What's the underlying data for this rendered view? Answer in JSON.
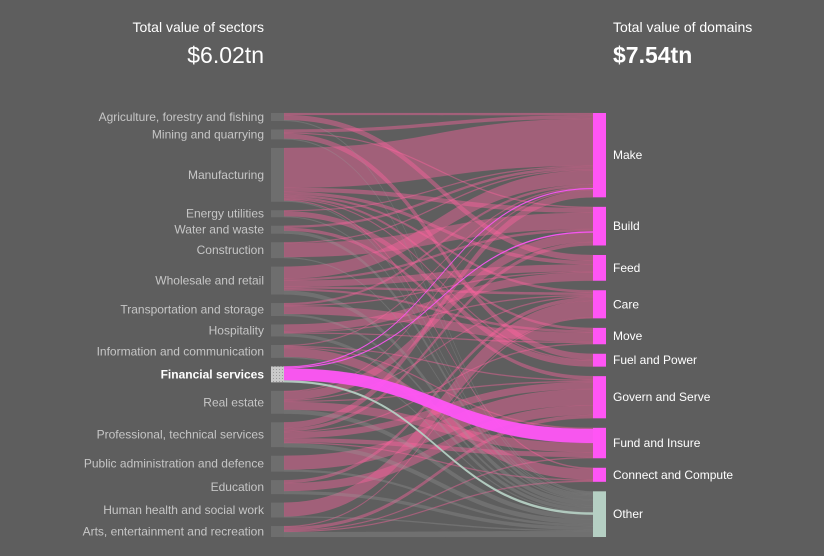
{
  "left_header": {
    "title": "Total value of sectors",
    "value": "$6.02tn"
  },
  "right_header": {
    "title": "Total value of domains",
    "value": "$7.54tn"
  },
  "colors": {
    "background": "#5e5e5e",
    "domain_node": "#ff55f5",
    "highlight": "#ff55f5",
    "other_node": "#b5cfc3",
    "flow": "#ff64a0",
    "sector_node": "#6e6e6e"
  },
  "highlighted_sector": "Financial services",
  "sectors": [
    "Agriculture, forestry and fishing",
    "Mining and quarrying",
    "Manufacturing",
    "Energy utilities",
    "Water and waste",
    "Construction",
    "Wholesale and retail",
    "Transportation and storage",
    "Hospitality",
    "Information and communication",
    "Financial services",
    "Real estate",
    "Professional, technical services",
    "Public administration and defence",
    "Education",
    "Human health and social work",
    "Arts, entertainment and recreation"
  ],
  "domains": [
    "Make",
    "Build",
    "Feed",
    "Care",
    "Move",
    "Fuel and Power",
    "Govern and Serve",
    "Fund and Insure",
    "Connect and Compute",
    "Other"
  ],
  "flow_matrix_relative": [
    [
      2,
      0,
      5,
      0,
      0,
      0,
      0,
      0,
      0,
      1
    ],
    [
      3,
      1,
      0,
      0,
      0,
      5,
      0,
      0,
      0,
      1
    ],
    [
      40,
      4,
      3,
      2,
      2,
      1,
      0,
      0,
      1,
      1
    ],
    [
      1,
      0,
      0,
      0,
      0,
      5,
      0,
      0,
      0,
      1
    ],
    [
      2,
      0,
      0,
      0,
      0,
      0,
      3,
      0,
      0,
      3
    ],
    [
      1,
      14,
      0,
      0,
      0,
      0,
      0,
      0,
      0,
      1
    ],
    [
      12,
      2,
      6,
      2,
      2,
      0,
      0,
      0,
      0,
      4
    ],
    [
      2,
      0,
      1,
      0,
      8,
      0,
      0,
      0,
      0,
      2
    ],
    [
      0,
      0,
      7,
      1,
      1,
      0,
      0,
      0,
      0,
      3
    ],
    [
      1,
      0,
      0,
      0,
      0,
      0,
      1,
      1,
      9,
      1
    ],
    [
      1,
      1,
      0,
      0,
      0,
      0,
      0,
      12,
      0,
      2
    ],
    [
      1,
      8,
      0,
      1,
      0,
      0,
      1,
      8,
      0,
      4
    ],
    [
      6,
      3,
      0,
      0,
      1,
      0,
      6,
      4,
      1,
      4
    ],
    [
      0,
      0,
      0,
      0,
      0,
      0,
      14,
      0,
      0,
      2
    ],
    [
      0,
      0,
      0,
      3,
      0,
      0,
      8,
      0,
      0,
      3
    ],
    [
      0,
      0,
      0,
      14,
      0,
      0,
      0,
      0,
      0,
      1
    ],
    [
      0,
      0,
      0,
      1,
      0,
      0,
      3,
      1,
      1,
      5
    ]
  ]
}
